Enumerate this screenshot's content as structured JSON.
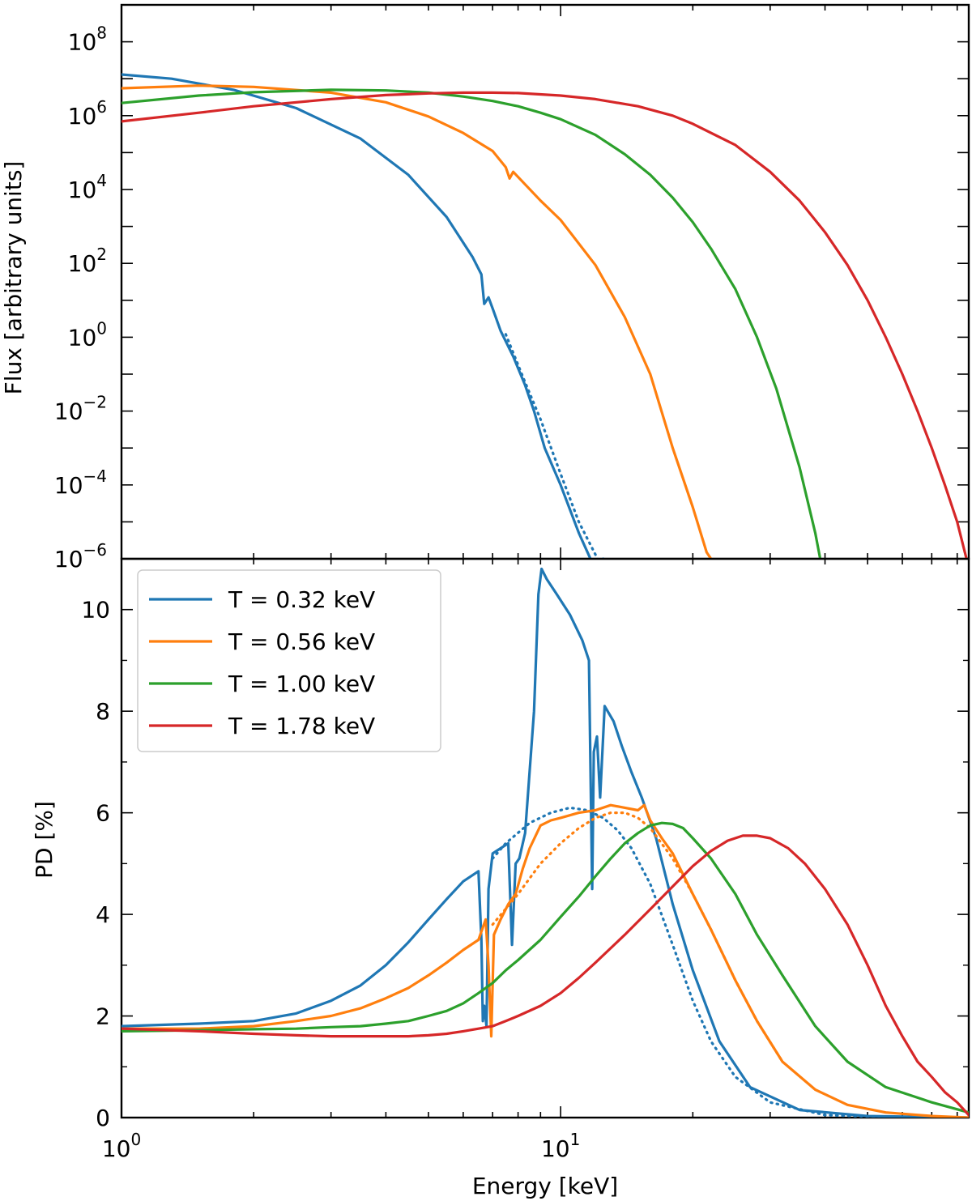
{
  "colors": {
    "blue": "#1f77b4",
    "orange": "#ff7f0e",
    "green": "#2ca02c",
    "red": "#d62728"
  },
  "chart_data": [
    {
      "type": "line",
      "panel": "top",
      "ylabel": "Flux [arbitrary units]",
      "xscale": "log",
      "yscale": "log",
      "xlim": [
        1,
        85
      ],
      "ylim": [
        1e-06,
        1000000000.0
      ],
      "ytick_labels": [
        {
          "base": "10",
          "exp": "8",
          "value": 100000000.0
        },
        {
          "base": "10",
          "exp": "6",
          "value": 1000000.0
        },
        {
          "base": "10",
          "exp": "4",
          "value": 10000.0
        },
        {
          "base": "10",
          "exp": "2",
          "value": 100.0
        },
        {
          "base": "10",
          "exp": "0",
          "value": 1
        },
        {
          "base": "10",
          "exp": "−2",
          "value": 0.01
        },
        {
          "base": "10",
          "exp": "−4",
          "value": 0.0001
        },
        {
          "base": "10",
          "exp": "−6",
          "value": 1e-06
        }
      ],
      "series": [
        {
          "name": "T = 0.32 keV",
          "color": "#1f77b4",
          "style": "solid",
          "x": [
            1,
            1.3,
            1.8,
            2.5,
            3.5,
            4.5,
            5.5,
            6.3,
            6.6,
            6.7,
            6.85,
            7.0,
            7.3,
            7.8,
            8.3,
            8.7,
            9.2,
            10,
            11,
            12,
            12.5
          ],
          "y": [
            13000000.0,
            10000000.0,
            5000000.0,
            1600000.0,
            240000.0,
            25000.0,
            1800.0,
            150.0,
            50.0,
            8,
            12,
            6,
            1.5,
            0.3,
            0.05,
            0.01,
            0.001,
            0.0001,
            5e-06,
            5e-07,
            1e-06
          ]
        },
        {
          "name": "T = 0.32 keV (model)",
          "color": "#1f77b4",
          "style": "dotted",
          "x": [
            7.5,
            8.3,
            9,
            10,
            11,
            12.5
          ],
          "y": [
            1.2,
            0.06,
            0.006,
            0.0002,
            1e-05,
            5e-07
          ]
        },
        {
          "name": "T = 0.56 keV",
          "color": "#ff7f0e",
          "style": "solid",
          "x": [
            1,
            1.5,
            2,
            3,
            4,
            5,
            6,
            7,
            7.5,
            7.65,
            7.8,
            9,
            10,
            12,
            14,
            16,
            18,
            20,
            21.5,
            22
          ],
          "y": [
            5500000.0,
            6500000.0,
            6000000.0,
            4200000.0,
            2300000.0,
            950000.0,
            340000.0,
            110000.0,
            40000.0,
            20000.0,
            30000.0,
            5000.0,
            1500.0,
            90,
            3.5,
            0.1,
            0.001,
            2.5e-05,
            1.5e-06,
            1e-06
          ]
        },
        {
          "name": "T = 1.00 keV",
          "color": "#2ca02c",
          "style": "solid",
          "x": [
            1,
            1.5,
            2,
            3,
            4,
            5,
            6,
            7,
            8,
            9,
            10,
            12,
            14,
            16,
            18,
            20,
            22,
            25,
            28,
            31,
            35,
            38,
            39
          ],
          "y": [
            2200000.0,
            3500000.0,
            4300000.0,
            5000000.0,
            4800000.0,
            4200000.0,
            3300000.0,
            2500000.0,
            1800000.0,
            1200000.0,
            800000.0,
            300000.0,
            90000.0,
            25000.0,
            6000.0,
            1300.0,
            250,
            20,
            1,
            0.04,
            0.0003,
            5e-06,
            1e-06
          ]
        },
        {
          "name": "T = 1.78 keV",
          "color": "#d62728",
          "style": "solid",
          "x": [
            1,
            1.5,
            2,
            3,
            4,
            5,
            6,
            7,
            8,
            10,
            12,
            15,
            18,
            20,
            25,
            30,
            35,
            40,
            45,
            50,
            55,
            60,
            65,
            70,
            75,
            80,
            84
          ],
          "y": [
            700000.0,
            1200000.0,
            1800000.0,
            2800000.0,
            3600000.0,
            4000000.0,
            4200000.0,
            4200000.0,
            4100000.0,
            3500000.0,
            2800000.0,
            1800000.0,
            1000000.0,
            600000.0,
            160000.0,
            30000.0,
            5000.0,
            700,
            90,
            10,
            1,
            0.1,
            0.01,
            0.001,
            0.0001,
            1e-05,
            1e-06
          ]
        }
      ]
    },
    {
      "type": "line",
      "panel": "bottom",
      "xlabel": "Energy [keV]",
      "ylabel": "PD [%]",
      "xscale": "log",
      "xlim": [
        1,
        85
      ],
      "ylim": [
        0,
        11
      ],
      "yticks": [
        0,
        2,
        4,
        6,
        8,
        10
      ],
      "xtick_labels": [
        {
          "base": "10",
          "exp": "0",
          "value": 1
        },
        {
          "base": "10",
          "exp": "1",
          "value": 10
        }
      ],
      "legend": {
        "position": "top-left",
        "entries": [
          {
            "label": "T = 0.32 keV",
            "color": "#1f77b4"
          },
          {
            "label": "T = 0.56 keV",
            "color": "#ff7f0e"
          },
          {
            "label": "T = 1.00 keV",
            "color": "#2ca02c"
          },
          {
            "label": "T = 1.78 keV",
            "color": "#d62728"
          }
        ]
      },
      "series": [
        {
          "name": "T = 0.32 keV",
          "color": "#1f77b4",
          "style": "solid",
          "x": [
            1,
            1.5,
            2,
            2.5,
            3,
            3.5,
            4,
            4.5,
            5,
            5.5,
            6,
            6.5,
            6.6,
            6.65,
            6.7,
            6.78,
            6.85,
            7.0,
            7.3,
            7.6,
            7.75,
            7.9,
            8.05,
            8.3,
            8.7,
            8.9,
            9.05,
            9.3,
            9.8,
            10.5,
            11.2,
            11.6,
            11.8,
            11.9,
            12.1,
            12.3,
            12.6,
            13.2,
            13.8,
            14.5,
            15.3,
            16.5,
            18,
            20,
            23,
            27,
            35,
            50,
            85
          ],
          "y": [
            1.8,
            1.85,
            1.9,
            2.05,
            2.3,
            2.6,
            3.0,
            3.45,
            3.9,
            4.3,
            4.65,
            4.85,
            3.5,
            1.9,
            2.2,
            1.8,
            4.5,
            5.2,
            5.3,
            5.4,
            3.4,
            5.0,
            5.1,
            5.6,
            8.0,
            10.3,
            10.8,
            10.6,
            10.3,
            9.9,
            9.4,
            9.0,
            4.5,
            7.2,
            7.5,
            6.3,
            8.1,
            7.8,
            7.3,
            6.8,
            6.3,
            5.5,
            4.2,
            2.9,
            1.5,
            0.6,
            0.15,
            0.03,
            0
          ]
        },
        {
          "name": "T = 0.32 keV (model)",
          "color": "#1f77b4",
          "style": "dotted",
          "x": [
            7,
            7.5,
            8.5,
            9.5,
            10.5,
            11.5,
            12.5,
            13.5,
            14.5,
            16,
            18,
            20,
            22,
            25,
            30,
            40,
            55,
            85
          ],
          "y": [
            5.1,
            5.4,
            5.8,
            6.0,
            6.1,
            6.05,
            5.9,
            5.65,
            5.3,
            4.6,
            3.4,
            2.3,
            1.5,
            0.8,
            0.3,
            0.05,
            0.01,
            0
          ]
        },
        {
          "name": "T = 0.56 keV",
          "color": "#ff7f0e",
          "style": "solid",
          "x": [
            1,
            1.5,
            2,
            2.5,
            3,
            3.5,
            4,
            4.5,
            5,
            5.5,
            6,
            6.5,
            6.75,
            6.85,
            6.95,
            7.05,
            7.3,
            7.6,
            7.9,
            8.2,
            8.5,
            9,
            9.5,
            10,
            11,
            12,
            13,
            14,
            15,
            15.5,
            16,
            17,
            18,
            20,
            22,
            25,
            28,
            32,
            38,
            45,
            55,
            70,
            85
          ],
          "y": [
            1.75,
            1.75,
            1.8,
            1.9,
            2.0,
            2.15,
            2.35,
            2.55,
            2.8,
            3.05,
            3.3,
            3.5,
            3.9,
            3.0,
            1.6,
            3.6,
            3.9,
            4.2,
            4.4,
            4.9,
            5.3,
            5.75,
            5.85,
            5.9,
            6.0,
            6.05,
            6.15,
            6.1,
            6.05,
            6.15,
            5.85,
            5.5,
            5.2,
            4.4,
            3.7,
            2.7,
            1.9,
            1.1,
            0.55,
            0.25,
            0.1,
            0.03,
            0
          ]
        },
        {
          "name": "T = 0.56 keV (model)",
          "color": "#ff7f0e",
          "style": "dotted",
          "x": [
            7,
            8,
            9,
            10,
            11,
            12,
            13,
            14,
            15,
            16,
            18,
            20,
            22,
            25,
            28,
            32
          ],
          "y": [
            3.8,
            4.4,
            5.0,
            5.4,
            5.7,
            5.9,
            6.0,
            6.0,
            5.9,
            5.7,
            5.1,
            4.4,
            3.7,
            2.7,
            1.9,
            1.1
          ]
        },
        {
          "name": "T = 1.00 keV",
          "color": "#2ca02c",
          "style": "solid",
          "x": [
            1,
            1.5,
            2,
            2.5,
            3,
            3.5,
            4,
            4.5,
            5,
            5.5,
            6,
            6.5,
            7,
            7.5,
            8,
            9,
            10,
            11,
            12,
            13,
            14,
            15,
            16,
            17,
            18,
            19,
            20,
            22,
            25,
            28,
            32,
            38,
            45,
            55,
            70,
            85
          ],
          "y": [
            1.7,
            1.72,
            1.74,
            1.75,
            1.78,
            1.8,
            1.85,
            1.9,
            2.0,
            2.1,
            2.25,
            2.45,
            2.65,
            2.9,
            3.1,
            3.5,
            3.95,
            4.35,
            4.75,
            5.1,
            5.4,
            5.6,
            5.75,
            5.8,
            5.78,
            5.7,
            5.5,
            5.1,
            4.4,
            3.6,
            2.8,
            1.8,
            1.1,
            0.6,
            0.3,
            0.1
          ]
        },
        {
          "name": "T = 1.78 keV",
          "color": "#d62728",
          "style": "solid",
          "x": [
            1,
            1.5,
            2,
            2.5,
            3,
            3.5,
            4,
            4.5,
            5,
            5.5,
            6,
            6.5,
            7,
            7.5,
            8,
            9,
            10,
            11,
            12,
            14,
            16,
            18,
            20,
            22,
            24,
            26,
            28,
            30,
            33,
            36,
            40,
            45,
            50,
            55,
            60,
            65,
            70,
            75,
            80,
            85
          ],
          "y": [
            1.75,
            1.7,
            1.65,
            1.62,
            1.6,
            1.6,
            1.6,
            1.6,
            1.62,
            1.65,
            1.7,
            1.75,
            1.8,
            1.9,
            2.0,
            2.2,
            2.45,
            2.75,
            3.05,
            3.6,
            4.1,
            4.55,
            4.95,
            5.25,
            5.45,
            5.55,
            5.55,
            5.5,
            5.3,
            5.0,
            4.5,
            3.8,
            3.0,
            2.2,
            1.6,
            1.1,
            0.8,
            0.5,
            0.3,
            0.05
          ]
        }
      ]
    }
  ]
}
